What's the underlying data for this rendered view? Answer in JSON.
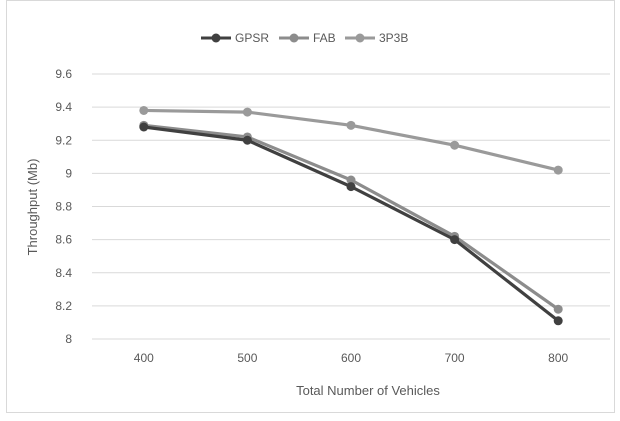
{
  "chart_data": {
    "type": "line",
    "title": "",
    "xlabel": "Total Number of Vehicles",
    "ylabel": "Throughput (Mb)",
    "categories": [
      "400",
      "500",
      "600",
      "700",
      "800"
    ],
    "ylim": [
      8,
      9.6
    ],
    "yticks": [
      8,
      8.2,
      8.4,
      8.6,
      8.8,
      9,
      9.2,
      9.4,
      9.6
    ],
    "ytick_labels": [
      "8",
      "8.2",
      "8.4",
      "8.6",
      "8.8",
      "9",
      "9.2",
      "9.4",
      "9.6"
    ],
    "grid": "horizontal",
    "legend_position": "top",
    "series": [
      {
        "name": "GPSR",
        "values": [
          9.28,
          9.2,
          8.92,
          8.6,
          8.11
        ],
        "color": "#404040"
      },
      {
        "name": "FAB",
        "values": [
          9.29,
          9.22,
          8.96,
          8.62,
          8.18
        ],
        "color": "#8c8c8c"
      },
      {
        "name": "3P3B",
        "values": [
          9.38,
          9.37,
          9.29,
          9.17,
          9.02
        ],
        "color": "#9a9a9a"
      }
    ]
  }
}
